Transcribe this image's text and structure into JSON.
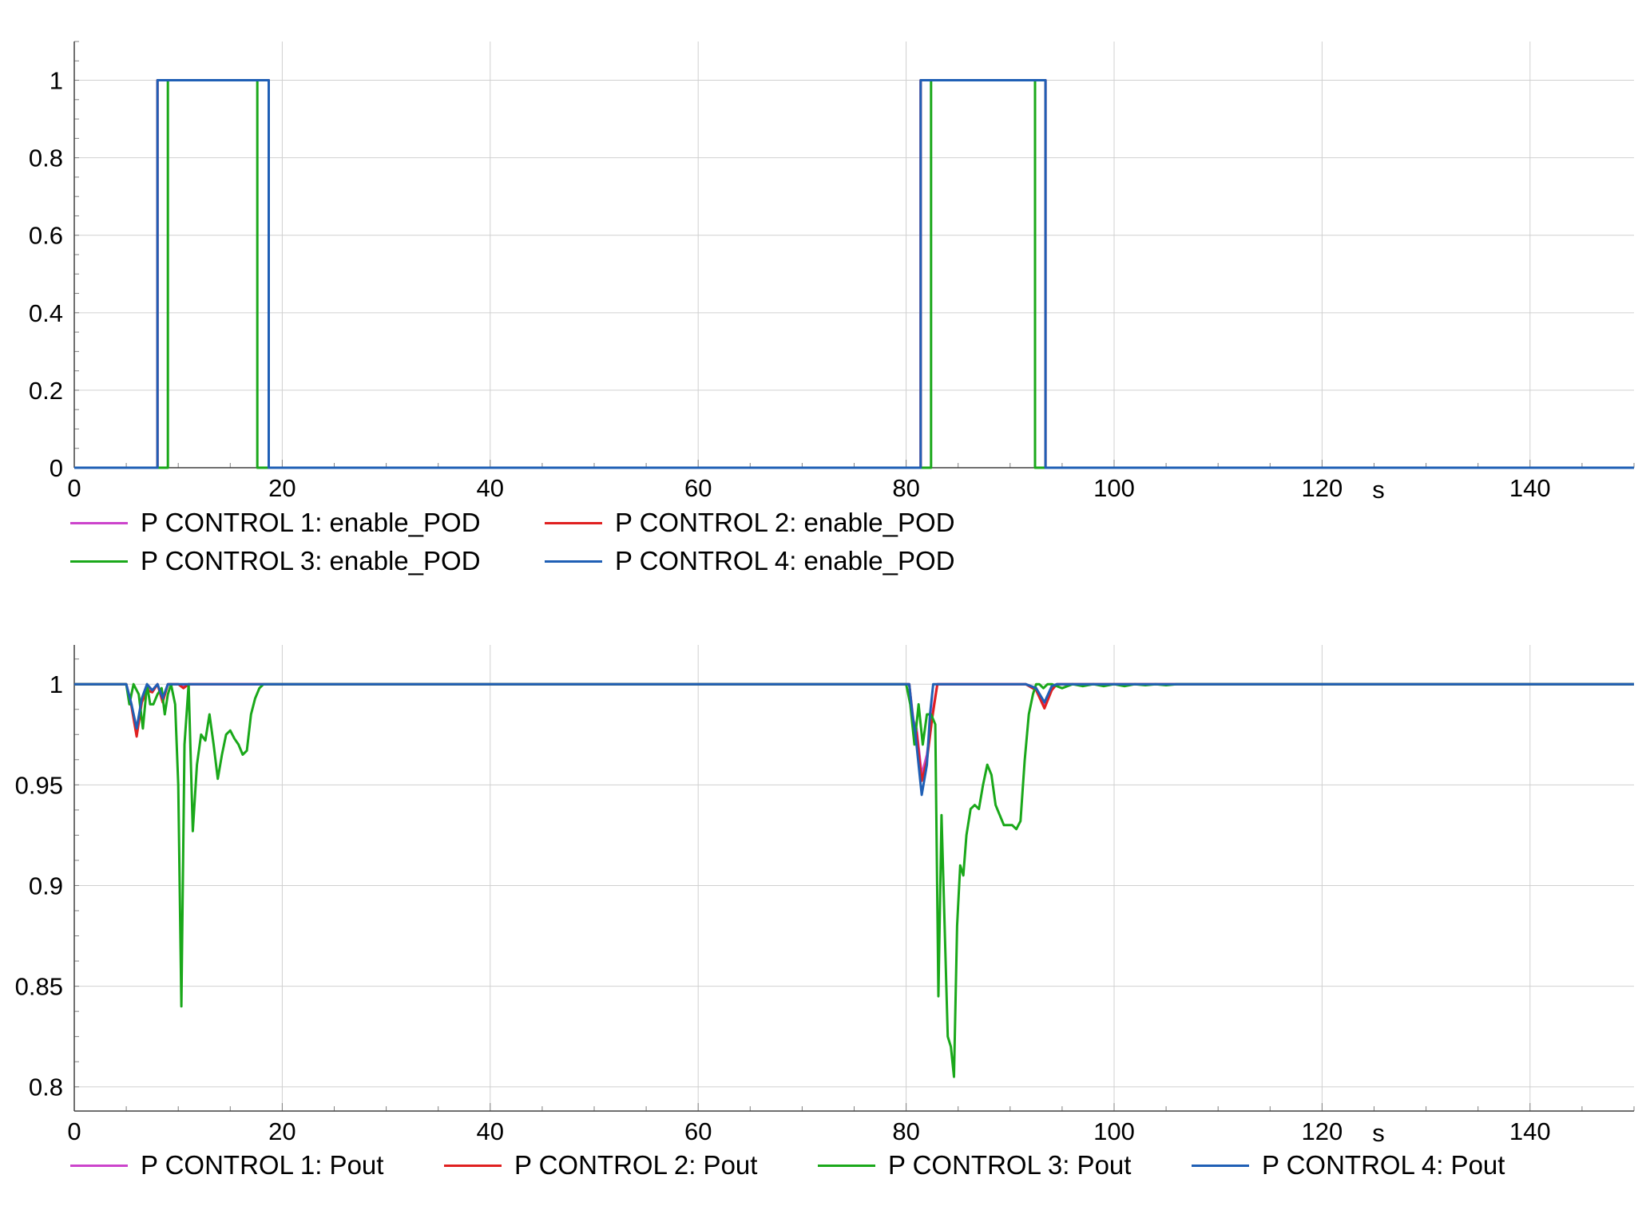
{
  "chart_data": [
    {
      "type": "line",
      "xlim": [
        0,
        150
      ],
      "ylim": [
        0,
        1.1
      ],
      "x_ticks": [
        0,
        20,
        40,
        60,
        80,
        100,
        120,
        140
      ],
      "x_unit": "s",
      "y_ticks": [
        0,
        0.2,
        0.4,
        0.6,
        0.8,
        1
      ],
      "y_tick_labels": [
        "0",
        "0.2",
        "0.4",
        "0.6",
        "0.8",
        "1"
      ],
      "grid": true,
      "legend_position": "bottom",
      "series": [
        {
          "name": "P CONTROL 1: enable_POD",
          "color": "#cc44cc",
          "x": [
            0,
            8,
            8,
            18.7,
            18.7,
            81.4,
            81.4,
            93.4,
            93.4,
            150
          ],
          "y": [
            0,
            0,
            1,
            1,
            0,
            0,
            1,
            1,
            0,
            0
          ]
        },
        {
          "name": "P CONTROL 2: enable_POD",
          "color": "#e02020",
          "x": [
            0,
            8,
            8,
            18.7,
            18.7,
            81.4,
            81.4,
            93.4,
            93.4,
            150
          ],
          "y": [
            0,
            0,
            1,
            1,
            0,
            0,
            1,
            1,
            0,
            0
          ]
        },
        {
          "name": "P CONTROL 3: enable_POD",
          "color": "#1aa81a",
          "x": [
            0,
            9,
            9,
            17.6,
            17.6,
            82.4,
            82.4,
            92.4,
            92.4,
            150
          ],
          "y": [
            0,
            0,
            1,
            1,
            0,
            0,
            1,
            1,
            0,
            0
          ]
        },
        {
          "name": "P CONTROL 4: enable_POD",
          "color": "#1f5fb5",
          "x": [
            0,
            8,
            8,
            18.7,
            18.7,
            81.4,
            81.4,
            93.4,
            93.4,
            150
          ],
          "y": [
            0,
            0,
            1,
            1,
            0,
            0,
            1,
            1,
            0,
            0
          ]
        }
      ]
    },
    {
      "type": "line",
      "xlim": [
        0,
        150
      ],
      "ylim": [
        0.788,
        1.0195
      ],
      "x_ticks": [
        0,
        20,
        40,
        60,
        80,
        100,
        120,
        140
      ],
      "x_unit": "s",
      "y_ticks": [
        0.8,
        0.85,
        0.9,
        0.95,
        1
      ],
      "y_tick_labels": [
        "0.8",
        "0.85",
        "0.9",
        "0.95",
        "1"
      ],
      "grid": true,
      "legend_position": "bottom",
      "series": [
        {
          "name": "P CONTROL 1: Pout",
          "color": "#cc44cc",
          "x": [
            0,
            5,
            5.5,
            6,
            6.5,
            7,
            7.5,
            8,
            8.5,
            9,
            9.5,
            10,
            10.5,
            11,
            80.3,
            80.7,
            81,
            81.5,
            82,
            82.5,
            83,
            91.5,
            92.5,
            93.3,
            94,
            94.5,
            150
          ],
          "y": [
            1,
            1,
            0.99,
            0.976,
            0.992,
            0.998,
            0.997,
            1,
            0.992,
            1,
            1,
            1,
            0.999,
            1,
            1,
            0.982,
            0.978,
            0.955,
            0.965,
            0.985,
            1,
            1,
            0.998,
            0.99,
            0.998,
            1,
            1
          ]
        },
        {
          "name": "P CONTROL 2: Pout",
          "color": "#e02020",
          "x": [
            0,
            5,
            5.5,
            6,
            6.5,
            7,
            7.5,
            8,
            8.5,
            9,
            9.5,
            10,
            10.5,
            11,
            80.3,
            80.7,
            81,
            81.5,
            82,
            82.5,
            83,
            91.5,
            92.5,
            93.3,
            94,
            94.5,
            150
          ],
          "y": [
            1,
            1,
            0.989,
            0.974,
            0.991,
            0.997,
            0.996,
            1,
            0.991,
            1,
            1,
            1,
            0.998,
            1,
            1,
            0.98,
            0.976,
            0.952,
            0.962,
            0.983,
            1,
            1,
            0.997,
            0.988,
            0.997,
            1,
            1
          ]
        },
        {
          "name": "P CONTROL 3: Pout",
          "color": "#1aa81a",
          "x": [
            0,
            5,
            5.3,
            5.7,
            6.2,
            6.6,
            7,
            7.3,
            7.6,
            8,
            8.4,
            8.7,
            9,
            9.3,
            9.7,
            10,
            10.3,
            10.6,
            11,
            11.4,
            11.8,
            12.2,
            12.6,
            13,
            13.4,
            13.8,
            14.2,
            14.6,
            15,
            15.4,
            15.8,
            16.2,
            16.6,
            17,
            17.4,
            17.8,
            18.2,
            18.6,
            19,
            19.4,
            20,
            80,
            80.4,
            80.8,
            81.2,
            81.6,
            82,
            82.4,
            82.8,
            83.1,
            83.4,
            83.7,
            84,
            84.3,
            84.6,
            84.9,
            85.2,
            85.5,
            85.8,
            86.2,
            86.6,
            87,
            87.4,
            87.8,
            88.2,
            88.6,
            89,
            89.4,
            89.8,
            90.2,
            90.6,
            91,
            91.4,
            91.8,
            92.2,
            92.5,
            92.8,
            93.2,
            93.6,
            94,
            95,
            96,
            97,
            98,
            99,
            100,
            101,
            102,
            103,
            104,
            105,
            106,
            107,
            108,
            109,
            110,
            112,
            114,
            116,
            120,
            150
          ],
          "y": [
            1,
            1,
            0.99,
            1,
            0.995,
            0.978,
            1,
            0.99,
            0.99,
            0.995,
            0.998,
            0.985,
            0.995,
            1,
            0.99,
            0.95,
            0.84,
            0.97,
            1,
            0.927,
            0.96,
            0.975,
            0.972,
            0.985,
            0.97,
            0.953,
            0.965,
            0.975,
            0.977,
            0.973,
            0.97,
            0.965,
            0.967,
            0.985,
            0.993,
            0.998,
            1,
            1,
            1,
            1,
            1,
            1,
            0.99,
            0.97,
            0.99,
            0.97,
            0.985,
            0.985,
            0.98,
            0.845,
            0.935,
            0.88,
            0.825,
            0.82,
            0.805,
            0.88,
            0.91,
            0.905,
            0.925,
            0.938,
            0.94,
            0.938,
            0.95,
            0.96,
            0.955,
            0.94,
            0.935,
            0.93,
            0.93,
            0.93,
            0.928,
            0.932,
            0.962,
            0.985,
            0.995,
            1,
            1,
            0.998,
            1,
            1,
            0.998,
            1,
            0.999,
            1,
            0.999,
            1,
            0.999,
            1,
            0.9995,
            1,
            0.9995,
            1,
            1,
            1,
            1,
            1,
            1,
            1,
            1,
            1,
            1
          ]
        },
        {
          "name": "P CONTROL 4: Pout",
          "color": "#1f5fb5",
          "x": [
            0,
            5,
            5.5,
            6,
            6.5,
            7,
            7.5,
            8,
            8.5,
            9,
            9.5,
            10,
            10.5,
            11,
            80.3,
            80.6,
            80.9,
            81.2,
            81.5,
            82,
            82.3,
            82.6,
            83,
            91.5,
            92.5,
            93.3,
            94,
            94.5,
            150
          ],
          "y": [
            1,
            1,
            0.99,
            0.978,
            0.993,
            1,
            0.997,
            1,
            0.993,
            1,
            1,
            1,
            1,
            1,
            1,
            0.985,
            0.975,
            0.96,
            0.945,
            0.96,
            0.985,
            1,
            1,
            1,
            0.998,
            0.991,
            0.999,
            1,
            1
          ]
        }
      ]
    }
  ]
}
